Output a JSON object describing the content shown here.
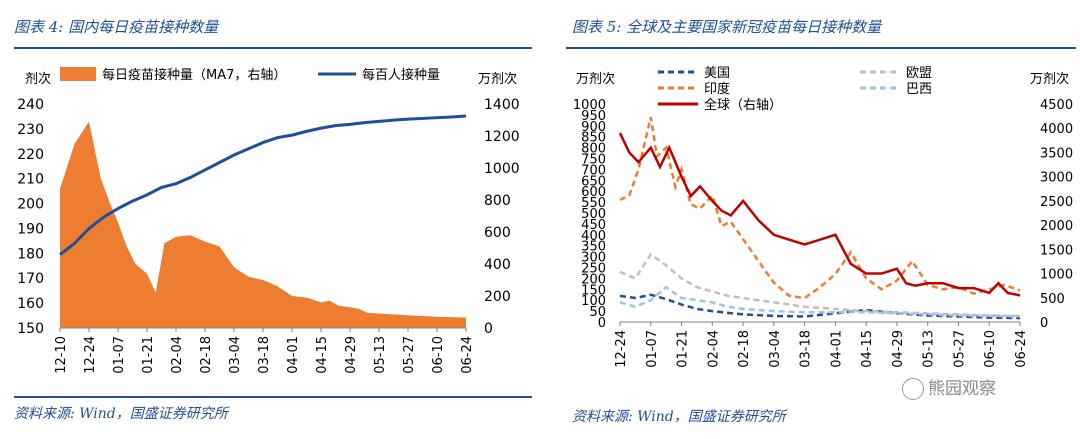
{
  "left_panel": {
    "title": "图表 4:  国内每日疫苗接种数量",
    "source": "资料来源:  Wind，国盛证券研究所"
  },
  "right_panel": {
    "title": "图表 5:  全球及主要国家新冠疫苗每日接种数量",
    "source": "资料来源:  Wind，国盛证券研究所"
  },
  "watermark": "熊园观察",
  "colors": {
    "orange": "#ed7d31",
    "navy": "#1f4e9b",
    "red": "#c00000",
    "grey": "#bfbfbf",
    "lightblue": "#9dc3e6",
    "dashblue": "#1f4e9b"
  },
  "chart_data": [
    {
      "type": "area",
      "left_unit": "剂次",
      "right_unit": "万剂次",
      "x_ticks": [
        "12-10",
        "12-24",
        "01-07",
        "01-21",
        "02-04",
        "02-18",
        "03-04",
        "03-18",
        "04-01",
        "04-15",
        "04-29",
        "05-13",
        "05-27",
        "06-10",
        "06-24"
      ],
      "y_left": {
        "ticks": [
          150,
          160,
          170,
          180,
          190,
          200,
          210,
          220,
          230,
          240
        ],
        "range": [
          150,
          240
        ]
      },
      "y_right": {
        "ticks": [
          0,
          200,
          400,
          600,
          800,
          1000,
          1200,
          1400
        ],
        "range": [
          0,
          1400
        ]
      },
      "series": [
        {
          "name": "每日疫苗接种量（MA7，右轴）",
          "type": "area",
          "axis": "right",
          "x": [
            0,
            0.5,
            1,
            1.4,
            1.7,
            2,
            2.3,
            2.6,
            3,
            3.3,
            3.6,
            4,
            4.5,
            5,
            5.5,
            6,
            6.5,
            7,
            7.5,
            8,
            8.5,
            9,
            9.3,
            9.6,
            10,
            10.3,
            10.6,
            11,
            11.5,
            12,
            12.5,
            13,
            13.5,
            14
          ],
          "values": [
            870,
            1150,
            1290,
            940,
            790,
            660,
            510,
            400,
            340,
            220,
            530,
            570,
            580,
            540,
            510,
            380,
            320,
            300,
            260,
            200,
            190,
            160,
            170,
            140,
            130,
            120,
            95,
            90,
            85,
            80,
            75,
            70,
            68,
            65
          ]
        },
        {
          "name": "每百人接种量",
          "type": "line",
          "axis": "left",
          "x": [
            0,
            0.5,
            1,
            1.5,
            2,
            2.5,
            3,
            3.5,
            4,
            4.5,
            5,
            5.5,
            6,
            6.5,
            7,
            7.5,
            8,
            8.5,
            9,
            9.5,
            10,
            10.5,
            11,
            11.5,
            12,
            12.5,
            13,
            13.5,
            14
          ],
          "values": [
            179.5,
            184,
            190,
            194.5,
            198,
            201,
            203.5,
            206.5,
            208,
            210.5,
            213.5,
            216.5,
            219.5,
            222,
            224.5,
            226.5,
            227.5,
            229,
            230.3,
            231.3,
            231.8,
            232.5,
            233,
            233.5,
            233.9,
            234.2,
            234.5,
            234.8,
            235.2
          ]
        }
      ]
    },
    {
      "type": "line",
      "left_unit": "万剂次",
      "right_unit": "万剂次",
      "x_ticks": [
        "12-24",
        "01-07",
        "01-21",
        "02-04",
        "02-18",
        "03-04",
        "03-18",
        "04-01",
        "04-15",
        "04-29",
        "05-13",
        "05-27",
        "06-10",
        "06-24"
      ],
      "y_left": {
        "ticks": [
          0,
          50,
          100,
          150,
          200,
          250,
          300,
          350,
          400,
          450,
          500,
          550,
          600,
          650,
          700,
          750,
          800,
          850,
          900,
          950,
          1000
        ],
        "range": [
          0,
          1000
        ]
      },
      "y_right": {
        "ticks": [
          0,
          500,
          1000,
          1500,
          2000,
          2500,
          3000,
          3500,
          4000,
          4500
        ],
        "range": [
          0,
          4500
        ]
      },
      "series": [
        {
          "name": "美国",
          "style": "dashed-navy",
          "axis": "left",
          "x": [
            0,
            0.5,
            1,
            1.5,
            2,
            2.5,
            3,
            3.5,
            4,
            5,
            6,
            7,
            8,
            9,
            10,
            11,
            12,
            13
          ],
          "values": [
            120,
            110,
            125,
            105,
            80,
            60,
            50,
            42,
            35,
            28,
            25,
            40,
            55,
            40,
            30,
            25,
            20,
            18
          ]
        },
        {
          "name": "欧盟",
          "style": "dashed-grey",
          "axis": "left",
          "x": [
            0,
            0.5,
            1,
            1.5,
            2,
            2.5,
            3,
            3.5,
            4,
            5,
            6,
            7,
            8,
            9,
            10,
            11,
            12,
            13
          ],
          "values": [
            230,
            200,
            310,
            260,
            200,
            160,
            140,
            120,
            110,
            90,
            70,
            60,
            50,
            45,
            40,
            35,
            30,
            28
          ]
        },
        {
          "name": "印度",
          "style": "dashed-orange",
          "axis": "left",
          "x": [
            0,
            0.3,
            0.6,
            1,
            1.2,
            1.5,
            1.8,
            2,
            2.3,
            2.6,
            3,
            3.3,
            3.6,
            4,
            4.5,
            5,
            5.5,
            6,
            6.5,
            7,
            7.5,
            8,
            8.5,
            9,
            9.5,
            10,
            10.5,
            11,
            11.5,
            12,
            12.5,
            13
          ],
          "values": [
            560,
            580,
            700,
            940,
            760,
            800,
            620,
            700,
            540,
            520,
            580,
            440,
            460,
            380,
            280,
            180,
            120,
            110,
            160,
            220,
            320,
            200,
            150,
            190,
            280,
            170,
            150,
            160,
            130,
            150,
            170,
            145
          ]
        },
        {
          "name": "巴西",
          "style": "dashed-lightblue",
          "axis": "left",
          "x": [
            0,
            0.5,
            1,
            1.5,
            2,
            2.5,
            3,
            3.5,
            4,
            5,
            6,
            7,
            8,
            9,
            10,
            11,
            12,
            13
          ],
          "values": [
            90,
            70,
            100,
            160,
            110,
            100,
            90,
            70,
            60,
            50,
            45,
            45,
            45,
            40,
            35,
            30,
            28,
            25
          ]
        },
        {
          "name": "全球（右轴）",
          "style": "solid-red",
          "axis": "right",
          "x": [
            0,
            0.3,
            0.6,
            1,
            1.3,
            1.6,
            2,
            2.3,
            2.6,
            3,
            3.3,
            3.6,
            4,
            4.5,
            5,
            5.5,
            6,
            6.5,
            7,
            7.5,
            8,
            8.5,
            9,
            9.3,
            9.6,
            10,
            10.5,
            11,
            11.5,
            12,
            12.3,
            12.6,
            13
          ],
          "values": [
            3900,
            3500,
            3300,
            3600,
            3200,
            3600,
            3000,
            2600,
            2800,
            2500,
            2300,
            2200,
            2500,
            2100,
            1800,
            1700,
            1600,
            1700,
            1800,
            1200,
            1000,
            1000,
            1100,
            800,
            750,
            800,
            800,
            700,
            700,
            600,
            800,
            600,
            550
          ]
        }
      ]
    }
  ]
}
